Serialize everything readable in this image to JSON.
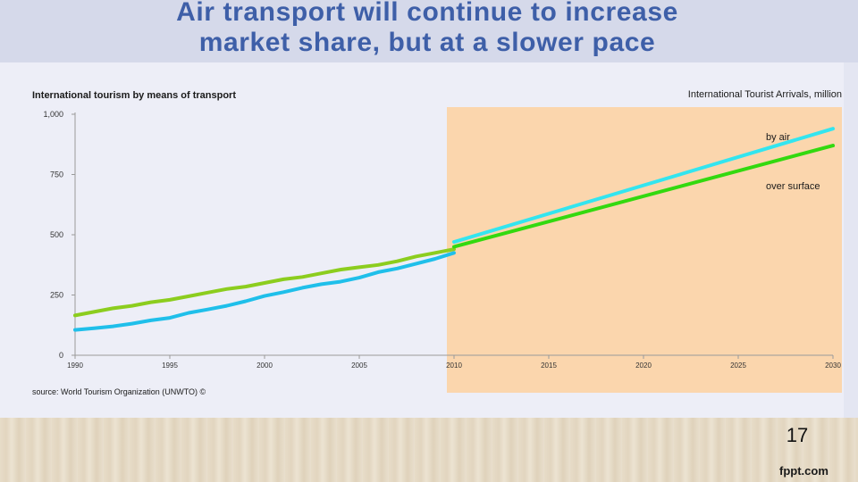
{
  "slide": {
    "title_line1": "Air transport will continue to increase",
    "title_line2": "market share, but at a slower pace",
    "page_number": "17",
    "brand": "fppt.com"
  },
  "colors": {
    "air": "#1fbfea",
    "air_forecast": "#33e5ef",
    "surface": "#8ccd1e",
    "surface_forecast": "#33d90f",
    "forecast_shade": "#fbd6ad",
    "axis": "#9a9a9a"
  },
  "chart_data": {
    "type": "line",
    "title": "International tourism by means of transport",
    "unit_label": "International Tourist Arrivals, million",
    "source": "source: World Tourism Organization (UNWTO) ©",
    "ylim": [
      0,
      1000
    ],
    "yticks": [
      0,
      250,
      500,
      750,
      1000
    ],
    "ytick_labels": [
      "0",
      "250",
      "500",
      "750",
      "1,000"
    ],
    "xlim": [
      1990,
      2030
    ],
    "xticks": [
      1990,
      1995,
      2000,
      2005,
      2010,
      2015,
      2020,
      2025,
      2030
    ],
    "xtick_labels": [
      "1990",
      "1995",
      "2000",
      "2005",
      "2010",
      "2015",
      "2020",
      "2025",
      "2030"
    ],
    "forecast_start": 2010,
    "series": [
      {
        "name": "by air",
        "x": [
          1990,
          1991,
          1992,
          1993,
          1994,
          1995,
          1996,
          1997,
          1998,
          1999,
          2000,
          2001,
          2002,
          2003,
          2004,
          2005,
          2006,
          2007,
          2008,
          2009,
          2010
        ],
        "values": [
          105,
          112,
          120,
          131,
          145,
          155,
          176,
          190,
          205,
          224,
          246,
          262,
          280,
          295,
          305,
          322,
          345,
          360,
          380,
          400,
          425
        ]
      },
      {
        "name": "over surface",
        "x": [
          1990,
          1991,
          1992,
          1993,
          1994,
          1995,
          1996,
          1997,
          1998,
          1999,
          2000,
          2001,
          2002,
          2003,
          2004,
          2005,
          2006,
          2007,
          2008,
          2009,
          2010
        ],
        "values": [
          165,
          180,
          195,
          205,
          220,
          230,
          245,
          260,
          275,
          285,
          300,
          315,
          325,
          340,
          355,
          365,
          375,
          390,
          410,
          425,
          440
        ]
      },
      {
        "name": "by air forecast",
        "x": [
          2010,
          2030
        ],
        "values": [
          470,
          940
        ]
      },
      {
        "name": "over surface forecast",
        "x": [
          2010,
          2030
        ],
        "values": [
          450,
          870
        ]
      }
    ]
  }
}
